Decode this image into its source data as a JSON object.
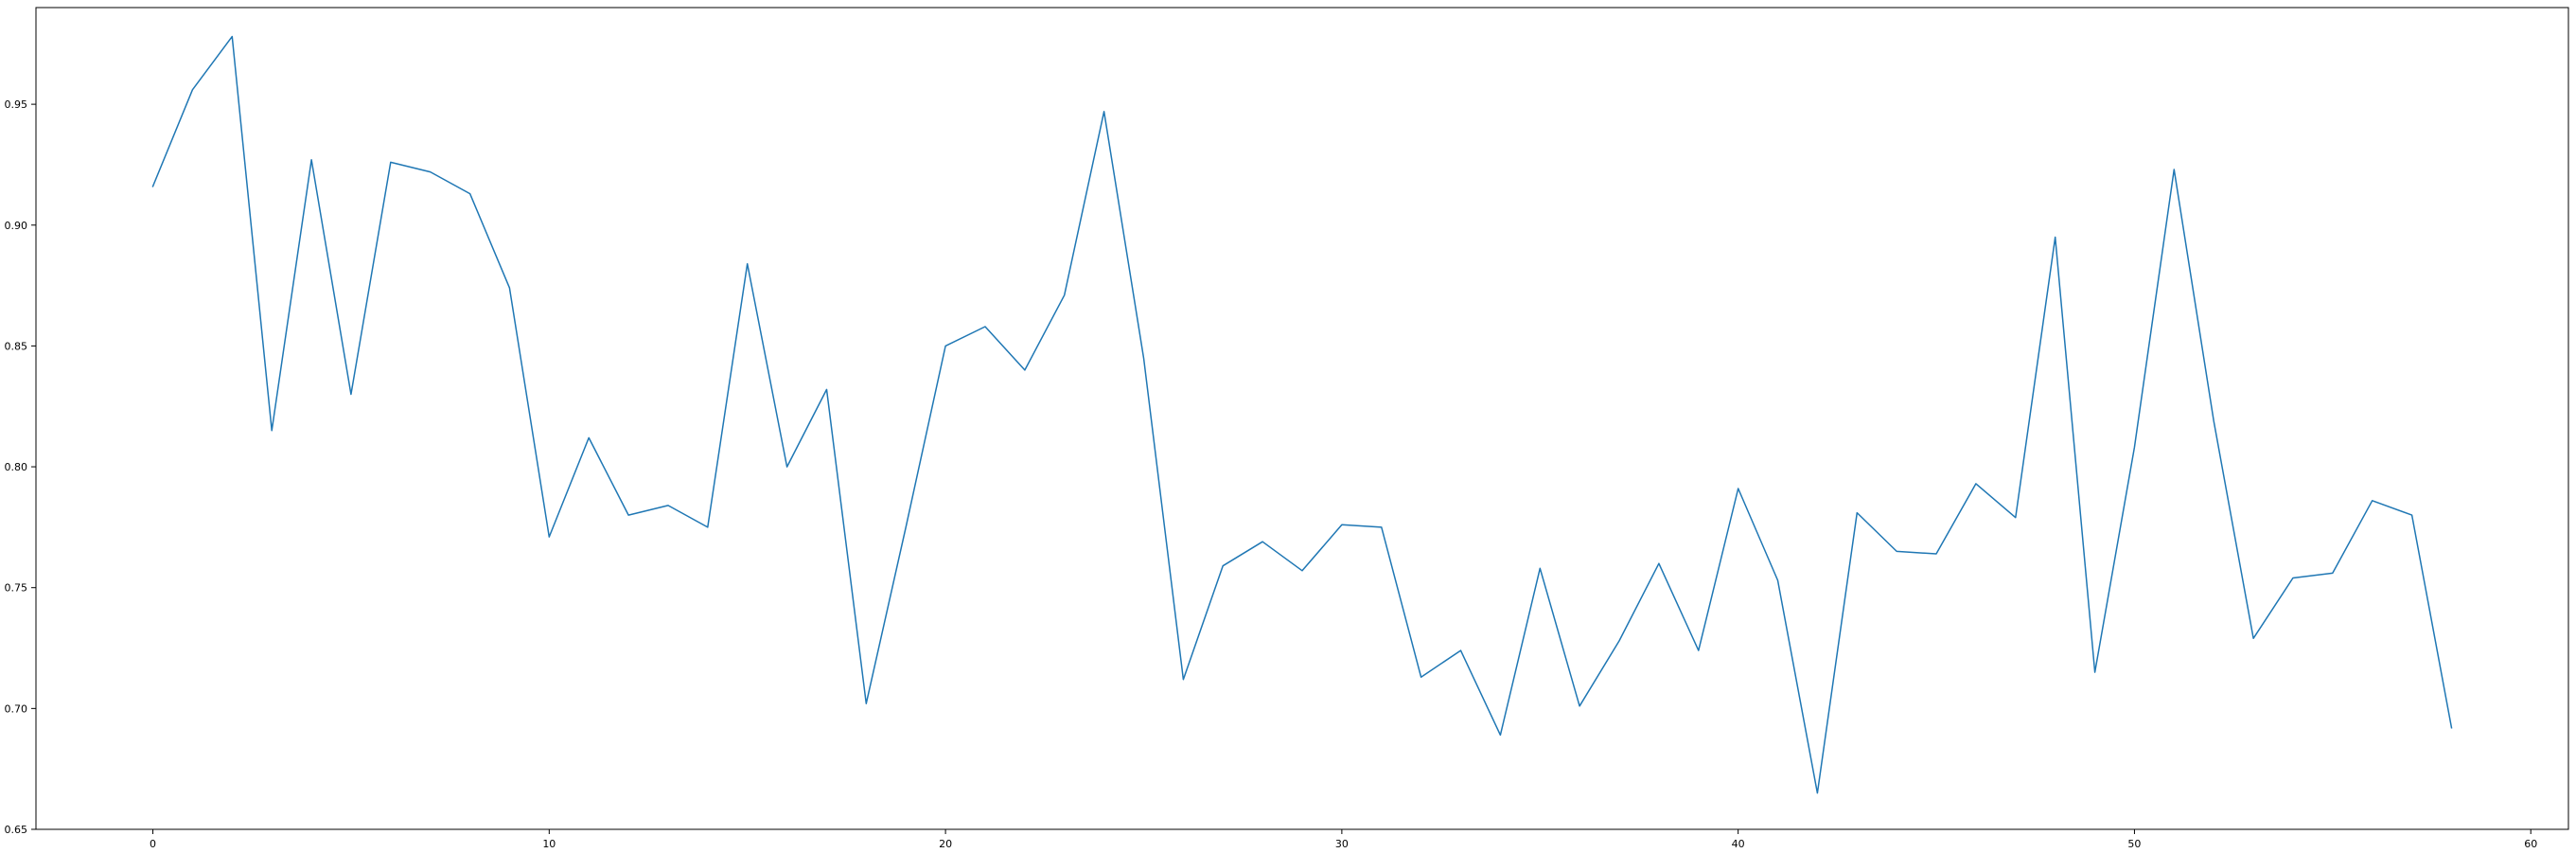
{
  "chart_data": {
    "type": "line",
    "title": "",
    "xlabel": "",
    "ylabel": "",
    "xlim": [
      -2.95,
      60.95
    ],
    "ylim": [
      0.65,
      0.99
    ],
    "x_ticks": [
      0,
      10,
      20,
      30,
      40,
      50,
      60
    ],
    "y_ticks": [
      0.65,
      0.7,
      0.75,
      0.8,
      0.85,
      0.9,
      0.95
    ],
    "x_tick_labels": [
      "0",
      "10",
      "20",
      "30",
      "40",
      "50",
      "60"
    ],
    "y_tick_labels": [
      "0.65",
      "0.70",
      "0.75",
      "0.80",
      "0.85",
      "0.90",
      "0.95"
    ],
    "grid": false,
    "legend": "none",
    "series": [
      {
        "color": "#1f77b4",
        "x": [
          0,
          1,
          2,
          3,
          4,
          5,
          6,
          7,
          8,
          9,
          10,
          11,
          12,
          13,
          14,
          15,
          16,
          17,
          18,
          19,
          20,
          21,
          22,
          23,
          24,
          25,
          26,
          27,
          28,
          29,
          30,
          31,
          32,
          33,
          34,
          35,
          36,
          37,
          38,
          39,
          40,
          41,
          42,
          43,
          44,
          45,
          46,
          47,
          48,
          49,
          50,
          51,
          52,
          53,
          54,
          55,
          56,
          57,
          58
        ],
        "values": [
          0.916,
          0.956,
          0.978,
          0.815,
          0.927,
          0.83,
          0.926,
          0.922,
          0.913,
          0.874,
          0.771,
          0.812,
          0.78,
          0.784,
          0.775,
          0.884,
          0.8,
          0.832,
          0.702,
          0.775,
          0.85,
          0.858,
          0.84,
          0.871,
          0.947,
          0.845,
          0.712,
          0.759,
          0.769,
          0.757,
          0.776,
          0.775,
          0.713,
          0.724,
          0.689,
          0.758,
          0.701,
          0.728,
          0.76,
          0.724,
          0.791,
          0.753,
          0.665,
          0.781,
          0.765,
          0.764,
          0.793,
          0.779,
          0.895,
          0.715,
          0.808,
          0.923,
          0.819,
          0.729,
          0.754,
          0.756,
          0.786,
          0.78,
          0.692
        ]
      }
    ]
  }
}
